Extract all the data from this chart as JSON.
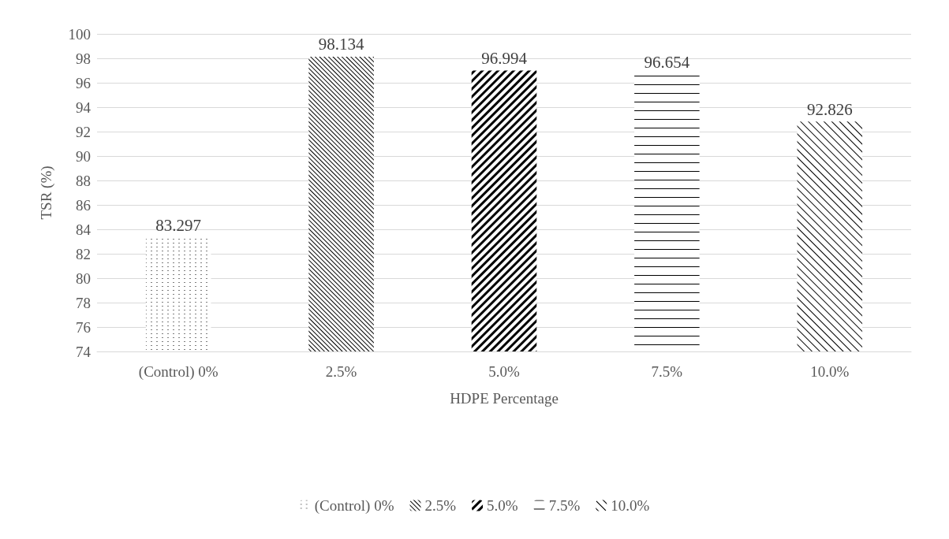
{
  "chart_data": {
    "type": "bar",
    "xlabel": "HDPE Percentage",
    "ylabel": "TSR (%)",
    "categories": [
      "(Control) 0%",
      "2.5%",
      "5.0%",
      "7.5%",
      "10.0%"
    ],
    "series": [
      {
        "name": "(Control) 0%",
        "color": "#000000",
        "values": [
          83.297,
          null,
          null,
          null,
          null
        ]
      },
      {
        "name": "2.5%",
        "color": "#000000",
        "values": [
          null,
          98.134,
          null,
          null,
          null
        ]
      },
      {
        "name": "5.0%",
        "color": "#000000",
        "values": [
          null,
          null,
          96.994,
          null,
          null
        ]
      },
      {
        "name": "7.5%",
        "color": "#000000",
        "values": [
          null,
          null,
          null,
          96.654,
          null
        ]
      },
      {
        "name": "10.0%",
        "color": "#000000",
        "values": [
          null,
          null,
          null,
          null,
          92.826
        ]
      }
    ],
    "ylim": [
      74,
      100
    ],
    "yticks": [
      74,
      76,
      78,
      80,
      82,
      84,
      86,
      88,
      90,
      92,
      94,
      96,
      98,
      100
    ],
    "grid": "y",
    "legend": "bottom",
    "data_labels": true
  }
}
